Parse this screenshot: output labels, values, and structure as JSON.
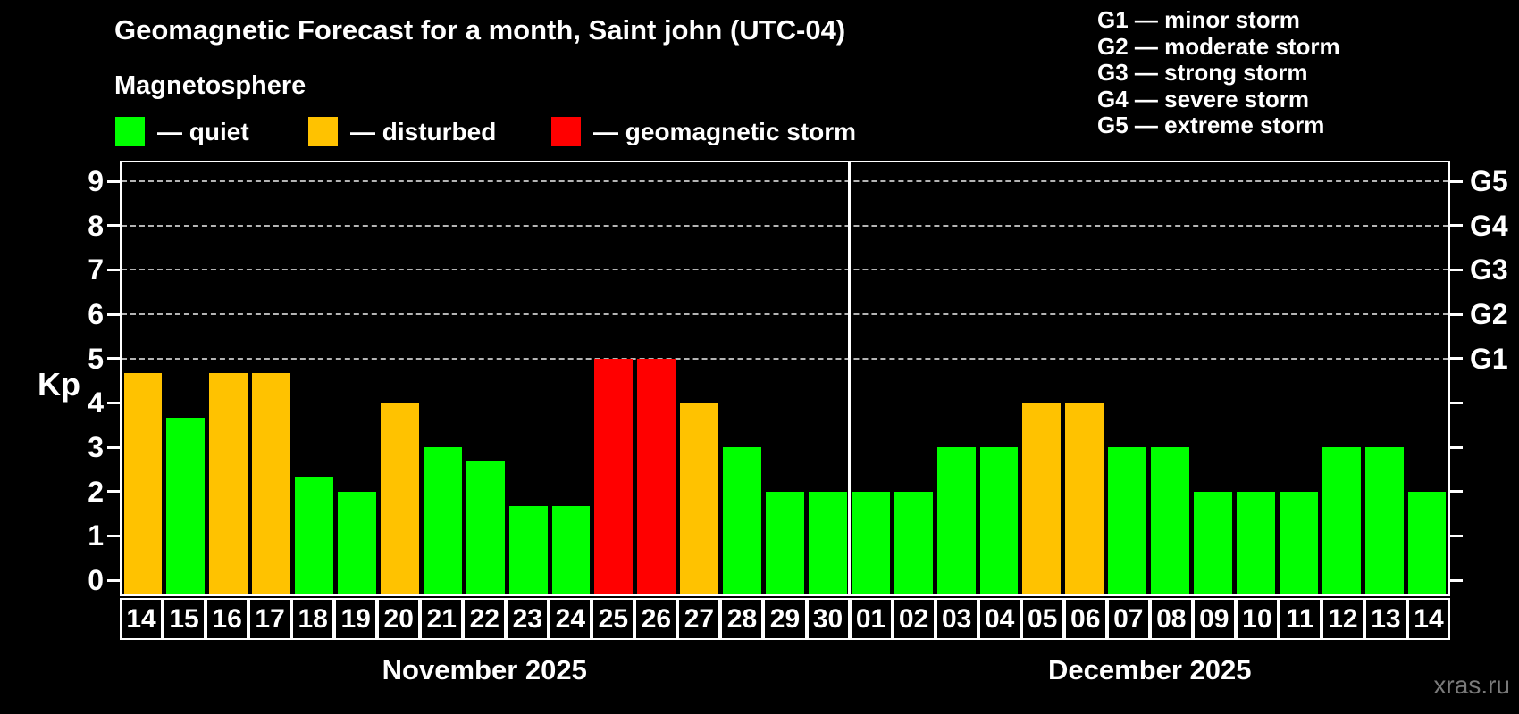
{
  "title": "Geomagnetic Forecast for a month, Saint john (UTC-04)",
  "subtitle": "Magnetosphere",
  "legend": [
    {
      "key": "quiet",
      "label": "— quiet"
    },
    {
      "key": "disturbed",
      "label": "— disturbed"
    },
    {
      "key": "storm",
      "label": "— geomagnetic storm"
    }
  ],
  "g_legend": [
    "G1 — minor storm",
    "G2 — moderate storm",
    "G3 — strong storm",
    "G4 — severe storm",
    "G5 — extreme storm"
  ],
  "kp_axis_label": "Kp",
  "watermark": "xras.ru",
  "colors": {
    "quiet": "#00ff00",
    "disturbed": "#ffc200",
    "storm": "#ff0000",
    "background": "#000000",
    "grid": "#b4b4b4",
    "axis": "#ffffff",
    "watermark": "#7a7a7a"
  },
  "chart_data": {
    "type": "bar",
    "title": "Geomagnetic Forecast for a month, Saint john (UTC-04)",
    "ylabel": "Kp",
    "ylim": [
      0,
      9.5
    ],
    "yticks": [
      0,
      1,
      2,
      3,
      4,
      5,
      6,
      7,
      8,
      9
    ],
    "grid_levels": [
      5,
      6,
      7,
      8,
      9
    ],
    "right_axis_labels": {
      "5": "G1",
      "6": "G2",
      "7": "G3",
      "8": "G4",
      "9": "G5"
    },
    "grid": true,
    "legend_position": "top-left",
    "months": [
      {
        "label": "November 2025",
        "days": 17
      },
      {
        "label": "December 2025",
        "days": 14
      }
    ],
    "categories": [
      "14",
      "15",
      "16",
      "17",
      "18",
      "19",
      "20",
      "21",
      "22",
      "23",
      "24",
      "25",
      "26",
      "27",
      "28",
      "29",
      "30",
      "01",
      "02",
      "03",
      "04",
      "05",
      "06",
      "07",
      "08",
      "09",
      "10",
      "11",
      "12",
      "13",
      "14"
    ],
    "values": [
      4.67,
      3.67,
      4.67,
      4.67,
      2.33,
      2,
      4,
      3,
      2.67,
      1.67,
      1.67,
      5,
      5,
      4,
      3,
      2,
      2,
      2,
      2,
      3,
      3,
      4,
      4,
      3,
      3,
      2,
      2,
      2,
      3,
      3,
      2
    ],
    "statuses": [
      "disturbed",
      "quiet",
      "disturbed",
      "disturbed",
      "quiet",
      "quiet",
      "disturbed",
      "quiet",
      "quiet",
      "quiet",
      "quiet",
      "storm",
      "storm",
      "disturbed",
      "quiet",
      "quiet",
      "quiet",
      "quiet",
      "quiet",
      "quiet",
      "quiet",
      "disturbed",
      "disturbed",
      "quiet",
      "quiet",
      "quiet",
      "quiet",
      "quiet",
      "quiet",
      "quiet",
      "quiet"
    ]
  }
}
